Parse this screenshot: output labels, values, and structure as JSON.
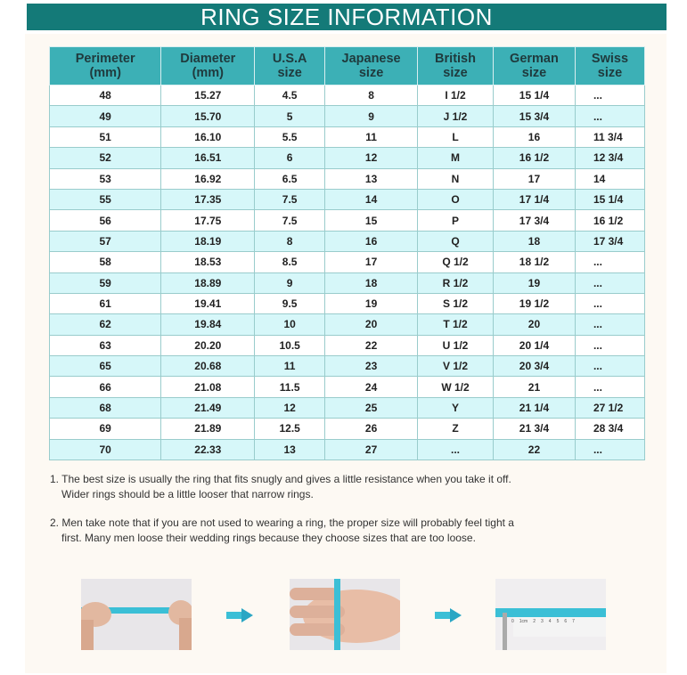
{
  "title": "RING SIZE INFORMATION",
  "table": {
    "headers": [
      [
        "Perimeter",
        "(mm)"
      ],
      [
        "Diameter",
        "(mm)"
      ],
      [
        "U.S.A",
        "size"
      ],
      [
        "Japanese",
        "size"
      ],
      [
        "British",
        "size"
      ],
      [
        "German",
        "size"
      ],
      [
        "Swiss",
        "size"
      ]
    ],
    "rows": [
      [
        "48",
        "15.27",
        "4.5",
        "8",
        "I 1/2",
        "15 1/4",
        "..."
      ],
      [
        "49",
        "15.70",
        "5",
        "9",
        "J 1/2",
        "15 3/4",
        "..."
      ],
      [
        "51",
        "16.10",
        "5.5",
        "11",
        "L",
        "16",
        "11 3/4"
      ],
      [
        "52",
        "16.51",
        "6",
        "12",
        "M",
        "16 1/2",
        "12 3/4"
      ],
      [
        "53",
        "16.92",
        "6.5",
        "13",
        "N",
        "17",
        "14"
      ],
      [
        "55",
        "17.35",
        "7.5",
        "14",
        "O",
        "17 1/4",
        "15 1/4"
      ],
      [
        "56",
        "17.75",
        "7.5",
        "15",
        "P",
        "17 3/4",
        "16 1/2"
      ],
      [
        "57",
        "18.19",
        "8",
        "16",
        "Q",
        "18",
        "17 3/4"
      ],
      [
        "58",
        "18.53",
        "8.5",
        "17",
        "Q 1/2",
        "18 1/2",
        "..."
      ],
      [
        "59",
        "18.89",
        "9",
        "18",
        "R 1/2",
        "19",
        "..."
      ],
      [
        "61",
        "19.41",
        "9.5",
        "19",
        "S 1/2",
        "19 1/2",
        "..."
      ],
      [
        "62",
        "19.84",
        "10",
        "20",
        "T 1/2",
        "20",
        "..."
      ],
      [
        "63",
        "20.20",
        "10.5",
        "22",
        "U 1/2",
        "20 1/4",
        "..."
      ],
      [
        "65",
        "20.68",
        "11",
        "23",
        "V 1/2",
        "20 3/4",
        "..."
      ],
      [
        "66",
        "21.08",
        "11.5",
        "24",
        "W 1/2",
        "21",
        "..."
      ],
      [
        "68",
        "21.49",
        "12",
        "25",
        "Y",
        "21 1/4",
        "27 1/2"
      ],
      [
        "69",
        "21.89",
        "12.5",
        "26",
        "Z",
        "21 3/4",
        "28 3/4"
      ],
      [
        "70",
        "22.33",
        "13",
        "27",
        "...",
        "22",
        "..."
      ]
    ]
  },
  "notes": [
    "1. The best size is usually the ring that fits snugly and gives a little resistance when you take it off. Wider rings should be a little looser that narrow rings.",
    "2. Men take note that if you are not used to wearing a ring, the proper size will probably feel tight a first. Many men loose their wedding rings because they choose sizes that are too loose."
  ],
  "ruler_labels": [
    "0",
    "1cm",
    "2",
    "3",
    "4",
    "5",
    "6",
    "7"
  ],
  "colors": {
    "title_bar": "#147a78",
    "header": "#3cb0b6",
    "alt_row": "#d6f7f9",
    "tape": "#3bbfd6"
  }
}
